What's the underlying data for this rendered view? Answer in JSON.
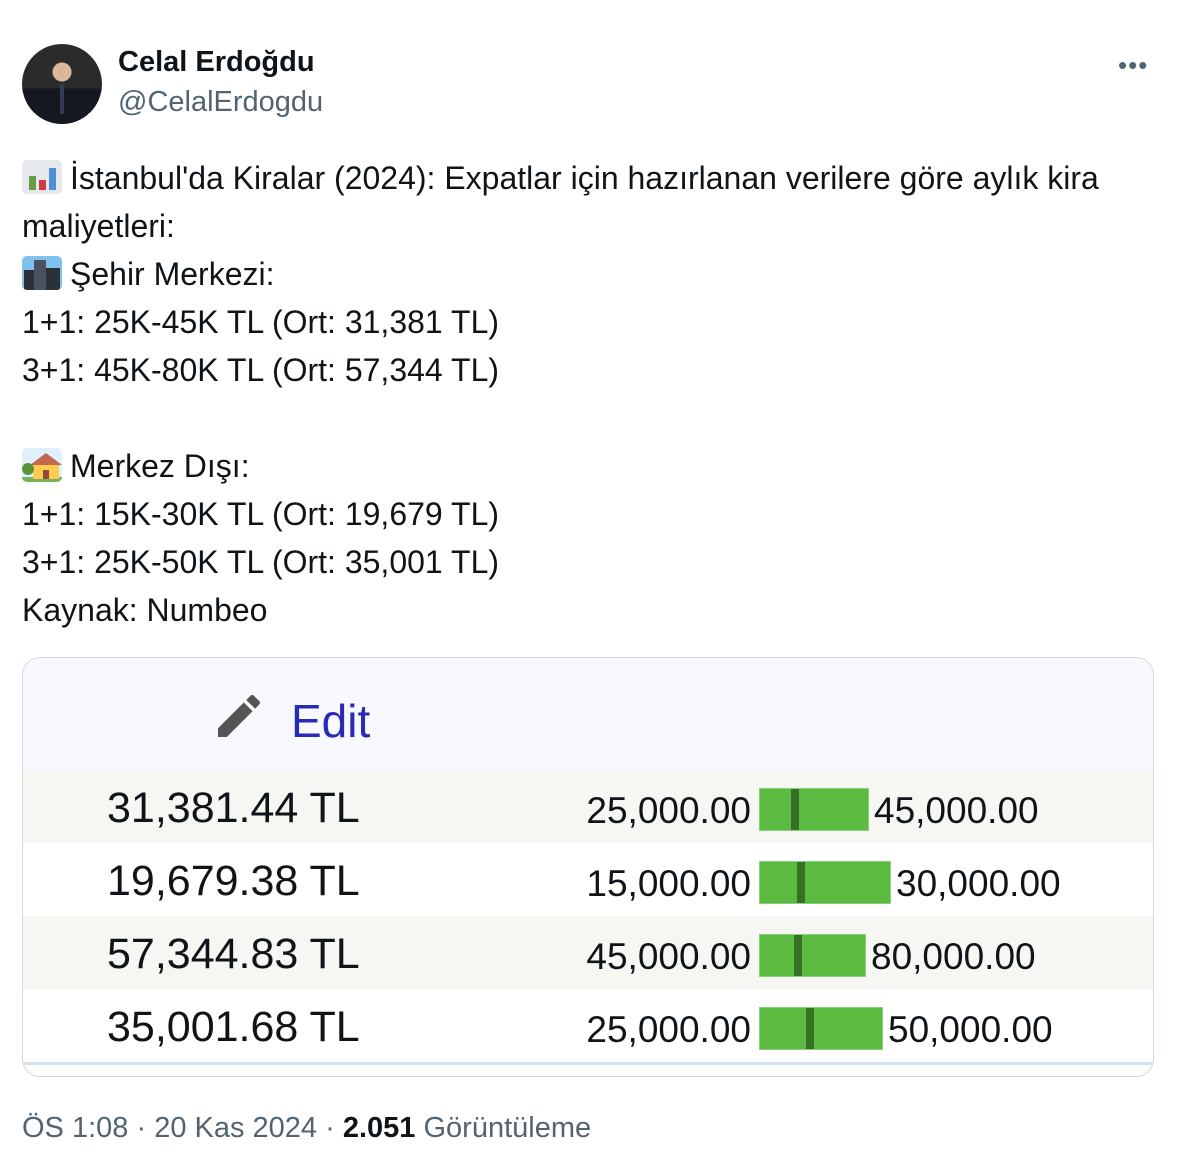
{
  "author": {
    "name": "Celal Erdoğdu",
    "handle": "@CelalErdogdu"
  },
  "menu_icon": "more-horizontal-icon",
  "tweet": {
    "line1": "İstanbul'da Kiralar (2024): Expatlar için hazırlanan verilere göre aylık kira maliyetleri:",
    "line2": "Şehir Merkezi:",
    "line3": "1+1: 25K-45K TL (Ort: 31,381 TL)",
    "line4": "3+1: 45K-80K TL (Ort: 57,344 TL)",
    "line5": "Merkez Dışı:",
    "line6": "1+1: 15K-30K TL (Ort: 19,679 TL)",
    "line7": "3+1: 25K-50K TL (Ort: 35,001 TL)",
    "line8": "Kaynak: Numbeo",
    "emojis": [
      "bar-chart-emoji",
      "cityscape-emoji",
      "house-with-garden-emoji"
    ]
  },
  "card": {
    "edit_label": "Edit",
    "bar_color": "#5bba40",
    "marker_color": "#367025",
    "rows": [
      {
        "avg": "31,381.44 TL",
        "low": "25,000.00",
        "high": "45,000.00",
        "avg_value": 31381.44,
        "low_value": 25000,
        "high_value": 45000
      },
      {
        "avg": "19,679.38 TL",
        "low": "15,000.00",
        "high": "30,000.00",
        "avg_value": 19679.38,
        "low_value": 15000,
        "high_value": 30000
      },
      {
        "avg": "57,344.83 TL",
        "low": "45,000.00",
        "high": "80,000.00",
        "avg_value": 57344.83,
        "low_value": 45000,
        "high_value": 80000
      },
      {
        "avg": "35,001.68 TL",
        "low": "25,000.00",
        "high": "50,000.00",
        "avg_value": 35001.68,
        "low_value": 25000,
        "high_value": 50000
      }
    ]
  },
  "footer": {
    "time": "ÖS 1:08",
    "sep": "·",
    "date": "20 Kas 2024",
    "views": "2.051",
    "views_label": "Görüntüleme"
  }
}
